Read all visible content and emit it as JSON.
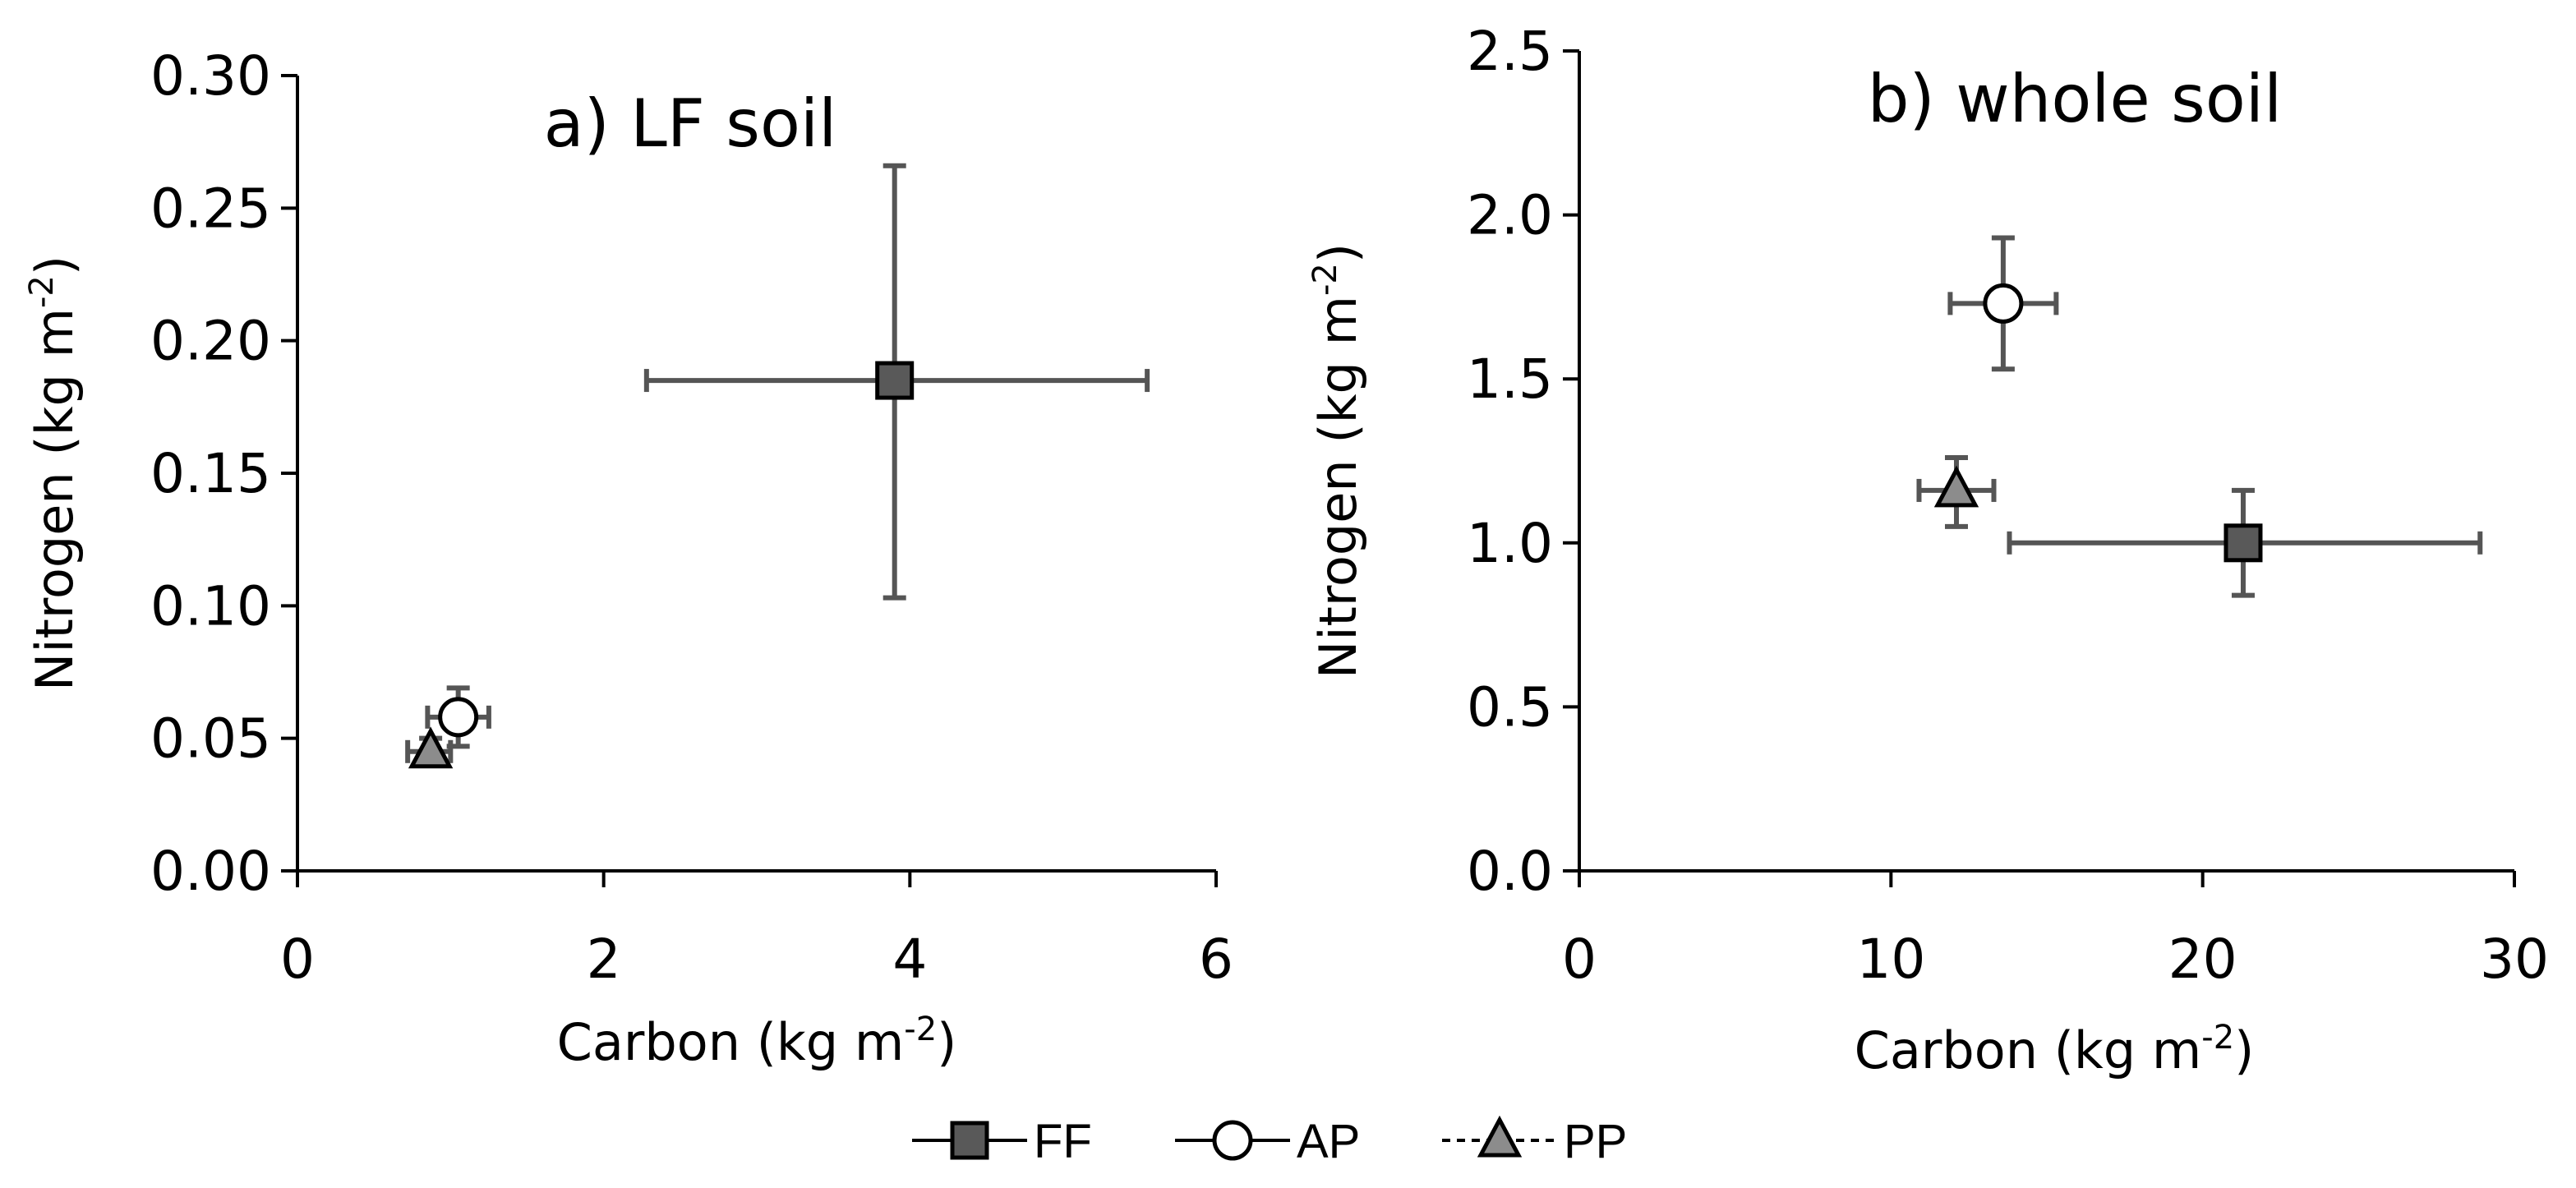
{
  "chart_data": [
    {
      "type": "scatter",
      "title": "a) LF soil",
      "xlabel": "Carbon (kg m",
      "xlabel_sup": "-2",
      "xlabel_end": ")",
      "ylabel": "Nitrogen (kg m",
      "ylabel_sup": "-2",
      "ylabel_end": ")",
      "xlim": [
        0,
        6
      ],
      "ylim": [
        0,
        0.3
      ],
      "xticks": [
        "0",
        "2",
        "4",
        "6"
      ],
      "yticks": [
        "0.00",
        "0.05",
        "0.10",
        "0.15",
        "0.20",
        "0.25",
        "0.30"
      ],
      "series": [
        {
          "name": "FF",
          "x": 3.9,
          "y": 0.185,
          "xerr": [
            2.28,
            5.55
          ],
          "yerr": [
            0.103,
            0.266
          ]
        },
        {
          "name": "AP",
          "x": 1.05,
          "y": 0.058,
          "xerr": [
            0.85,
            1.25
          ],
          "yerr": [
            0.047,
            0.069
          ]
        },
        {
          "name": "PP",
          "x": 0.87,
          "y": 0.045,
          "xerr": [
            0.72,
            1.0
          ],
          "yerr": [
            0.04,
            0.05
          ]
        }
      ]
    },
    {
      "type": "scatter",
      "title": "b) whole soil",
      "xlabel": "Carbon (kg m",
      "xlabel_sup": "-2",
      "xlabel_end": ")",
      "ylabel": "Nitrogen (kg m",
      "ylabel_sup": "-2",
      "ylabel_end": ")",
      "xlim": [
        0,
        30
      ],
      "ylim": [
        0,
        2.5
      ],
      "xticks": [
        "0",
        "10",
        "20",
        "30"
      ],
      "yticks": [
        "0.0",
        "0.5",
        "1.0",
        "1.5",
        "2.0",
        "2.5"
      ],
      "series": [
        {
          "name": "FF",
          "x": 21.3,
          "y": 1.0,
          "xerr": [
            13.8,
            28.9
          ],
          "yerr": [
            0.84,
            1.16
          ]
        },
        {
          "name": "AP",
          "x": 13.6,
          "y": 1.73,
          "xerr": [
            11.9,
            15.3
          ],
          "yerr": [
            1.53,
            1.93
          ]
        },
        {
          "name": "PP",
          "x": 12.1,
          "y": 1.16,
          "xerr": [
            10.9,
            13.3
          ],
          "yerr": [
            1.05,
            1.26
          ]
        }
      ]
    }
  ],
  "legend": {
    "items": [
      {
        "label": "FF",
        "marker": "square",
        "fill": "#595959",
        "line": "solid"
      },
      {
        "label": "AP",
        "marker": "circle",
        "fill": "#ffffff",
        "line": "solid"
      },
      {
        "label": "PP",
        "marker": "triangle",
        "fill": "#8c8c8c",
        "line": "dashed"
      }
    ]
  },
  "colors": {
    "FF": "#595959",
    "AP": "#ffffff",
    "PP": "#8c8c8c",
    "error_bar": "#555555"
  }
}
